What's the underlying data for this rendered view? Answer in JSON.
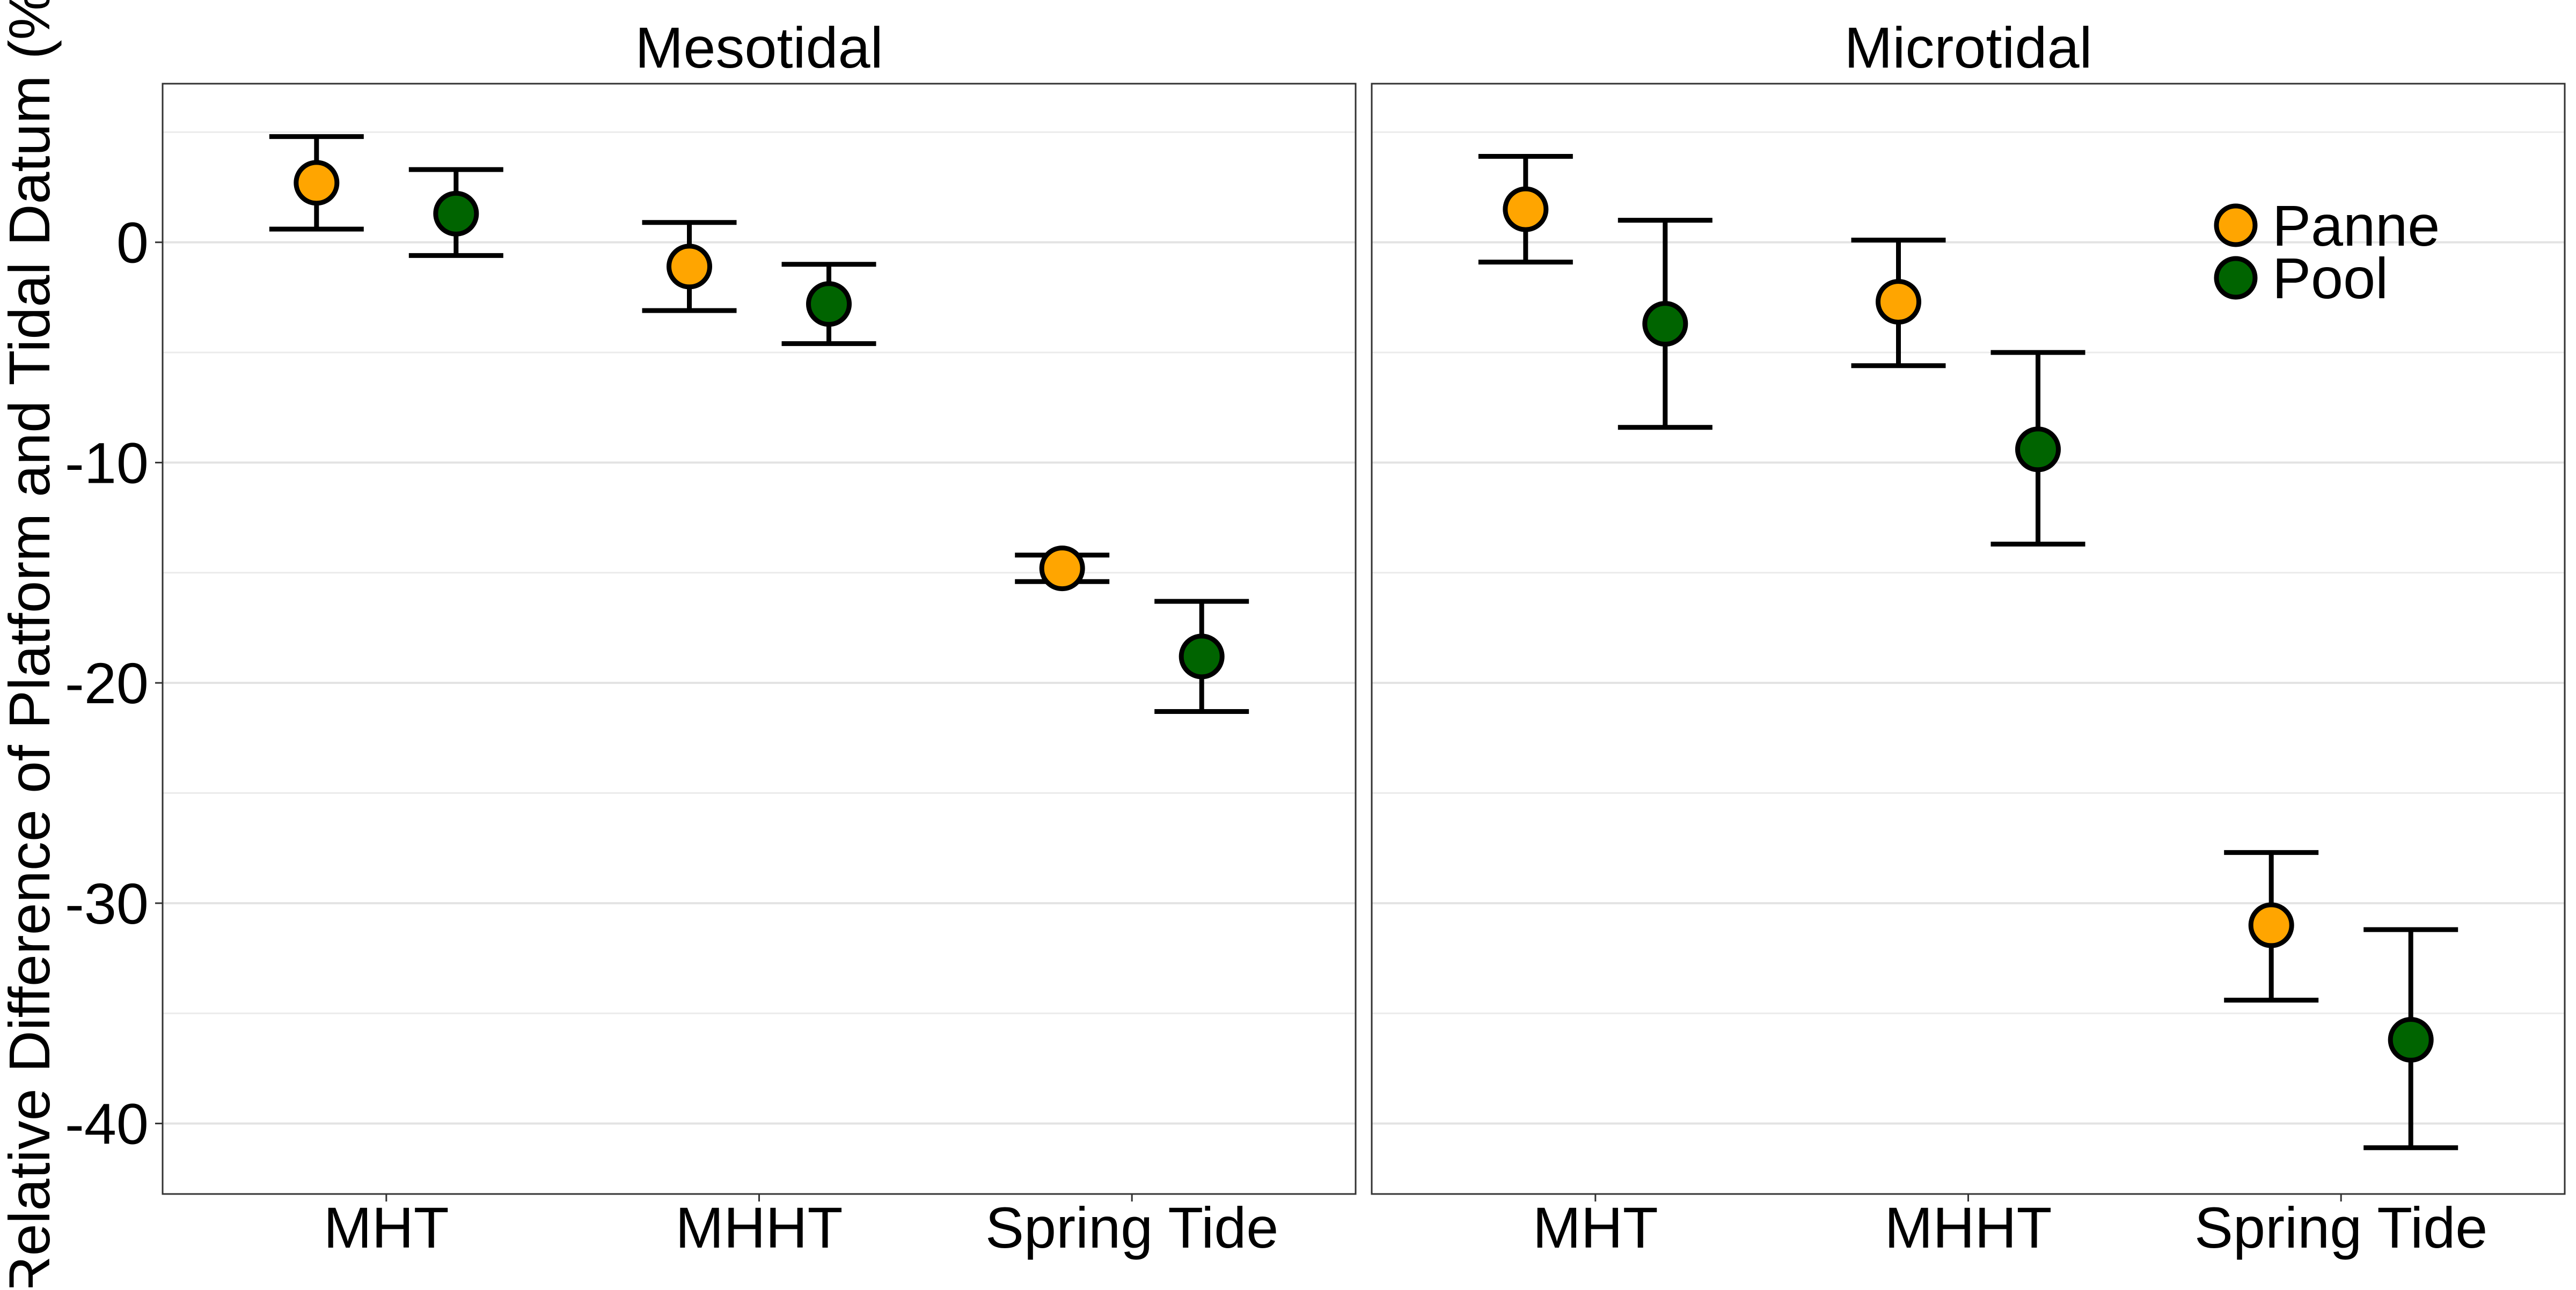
{
  "chart_data": {
    "type": "scatter",
    "ylabel": "Relative Difference of Platform and Tidal Datum (%)",
    "xlabel": "",
    "ylim": [
      -43.2,
      7.2
    ],
    "yticks": [
      0,
      -10,
      -20,
      -30,
      -40
    ],
    "categories": [
      "MHT",
      "MHHT",
      "Spring Tide"
    ],
    "grid": "horizontal",
    "legend": {
      "position": "top-right",
      "entries": [
        {
          "name": "Panne",
          "color": "#FFA500"
        },
        {
          "name": "Pool",
          "color": "#006400"
        }
      ]
    },
    "panels": [
      {
        "title": "Mesotidal",
        "series": [
          {
            "name": "Panne",
            "values": [
              {
                "category": "MHT",
                "y": 2.7,
                "low": 0.6,
                "high": 4.8
              },
              {
                "category": "MHHT",
                "y": -1.1,
                "low": -3.1,
                "high": 0.9
              },
              {
                "category": "Spring Tide",
                "y": -14.8,
                "low": -15.4,
                "high": -14.2
              }
            ]
          },
          {
            "name": "Pool",
            "values": [
              {
                "category": "MHT",
                "y": 1.3,
                "low": -0.6,
                "high": 3.3
              },
              {
                "category": "MHHT",
                "y": -2.8,
                "low": -4.6,
                "high": -1.0
              },
              {
                "category": "Spring Tide",
                "y": -18.8,
                "low": -21.3,
                "high": -16.3
              }
            ]
          }
        ]
      },
      {
        "title": "Microtidal",
        "series": [
          {
            "name": "Panne",
            "values": [
              {
                "category": "MHT",
                "y": 1.5,
                "low": -0.9,
                "high": 3.9
              },
              {
                "category": "MHHT",
                "y": -2.7,
                "low": -5.6,
                "high": 0.1
              },
              {
                "category": "Spring Tide",
                "y": -31.0,
                "low": -34.4,
                "high": -27.7
              }
            ]
          },
          {
            "name": "Pool",
            "values": [
              {
                "category": "MHT",
                "y": -3.7,
                "low": -8.4,
                "high": 1.0
              },
              {
                "category": "MHHT",
                "y": -9.4,
                "low": -13.7,
                "high": -5.0
              },
              {
                "category": "Spring Tide",
                "y": -36.2,
                "low": -41.1,
                "high": -31.2
              }
            ]
          }
        ]
      }
    ]
  }
}
